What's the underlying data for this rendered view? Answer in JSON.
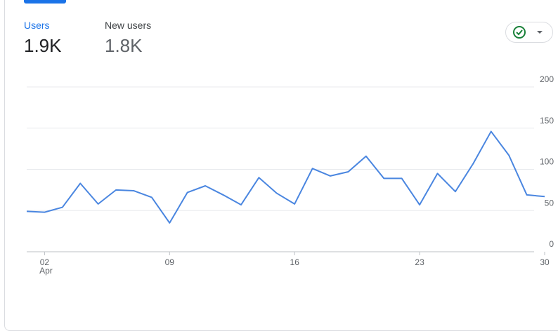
{
  "tabs": [
    {
      "label": "Users",
      "value": "1.9K"
    },
    {
      "label": "New users",
      "value": "1.8K"
    }
  ],
  "chart_data": {
    "type": "line",
    "categories": [
      null,
      "02",
      null,
      null,
      null,
      null,
      null,
      null,
      "09",
      null,
      null,
      null,
      null,
      null,
      null,
      "16",
      null,
      null,
      null,
      null,
      null,
      null,
      "23",
      null,
      null,
      null,
      null,
      null,
      null,
      "30"
    ],
    "month_label": "Apr",
    "series": [
      {
        "name": "Users",
        "color": "#4a86e0",
        "values": [
          49,
          48,
          54,
          83,
          58,
          75,
          74,
          66,
          35,
          72,
          80,
          69,
          57,
          90,
          71,
          58,
          101,
          92,
          97,
          116,
          89,
          89,
          57,
          95,
          73,
          107,
          146,
          117,
          69,
          67
        ]
      }
    ],
    "ylim": [
      0,
      200
    ],
    "yticks": [
      0,
      50,
      100,
      150,
      200
    ],
    "grid": true
  }
}
